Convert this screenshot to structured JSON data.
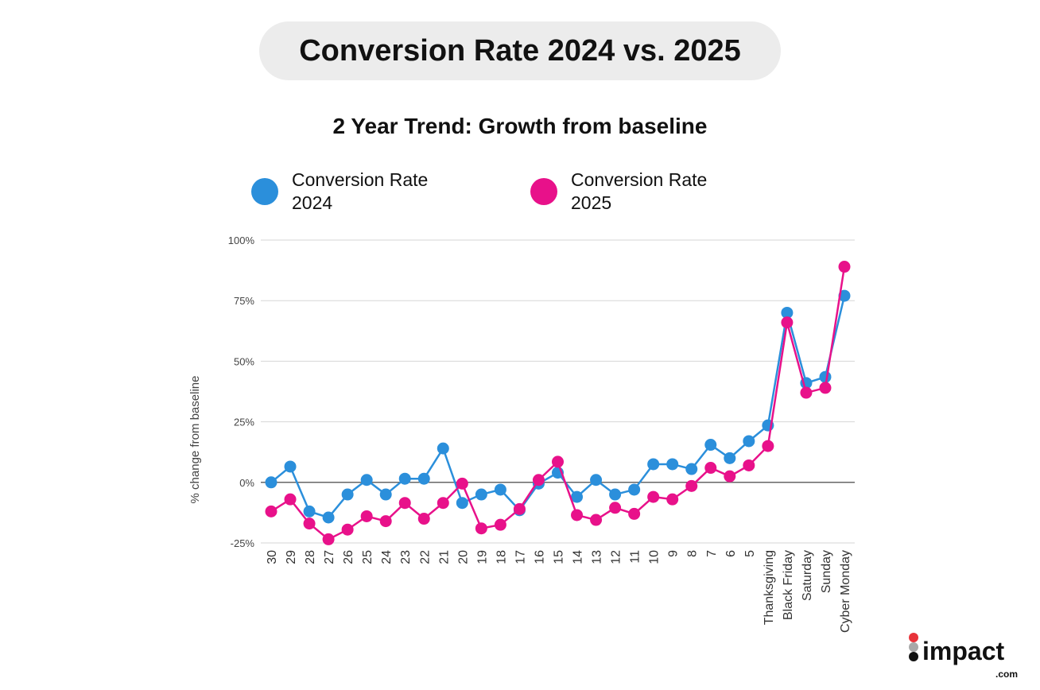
{
  "title": "Conversion Rate 2024 vs. 2025",
  "logo_text": "impact.com",
  "chart_data": {
    "type": "line",
    "title": "2 Year Trend: Growth from baseline",
    "xlabel": "",
    "ylabel": "% change from baseline",
    "ylim": [
      -25,
      100
    ],
    "yticks": [
      -25,
      0,
      25,
      50,
      75,
      100
    ],
    "ytick_labels": [
      "-25%",
      "0%",
      "25%",
      "50%",
      "75%",
      "100%"
    ],
    "grid": true,
    "legend_position": "top",
    "categories": [
      "30",
      "29",
      "28",
      "27",
      "26",
      "25",
      "24",
      "23",
      "22",
      "21",
      "20",
      "19",
      "18",
      "17",
      "16",
      "15",
      "14",
      "13",
      "12",
      "11",
      "10",
      "9",
      "8",
      "7",
      "6",
      "5",
      "Thanksgiving",
      "Black Friday",
      "Saturday",
      "Sunday",
      "Cyber Monday"
    ],
    "series": [
      {
        "name": "Conversion Rate 2024",
        "color": "#2b8fdb",
        "values": [
          0,
          6.5,
          -12,
          -14.5,
          -5,
          1,
          -5,
          1.5,
          1.5,
          14,
          -8.5,
          -5,
          -3,
          -11.5,
          -0.5,
          4,
          -6,
          1,
          -5,
          -3,
          7.5,
          7.5,
          5.5,
          15.5,
          10,
          17,
          23.5,
          70,
          41,
          43.5,
          77
        ]
      },
      {
        "name": "Conversion Rate 2025",
        "color": "#e8118a",
        "values": [
          -12,
          -7,
          -17,
          -23.5,
          -19.5,
          -14,
          -16,
          -8.5,
          -15,
          -8.5,
          -0.5,
          -19,
          -17.5,
          -11,
          1,
          8.5,
          -13.5,
          -15.5,
          -10.5,
          -13,
          -6,
          -7,
          -1.5,
          6,
          2.5,
          7,
          15,
          66,
          37,
          39,
          89
        ]
      }
    ]
  }
}
